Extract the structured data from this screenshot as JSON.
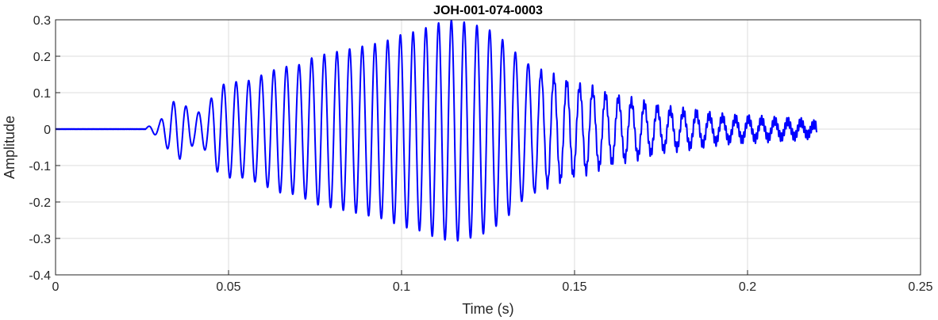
{
  "chart_data": {
    "type": "line",
    "title": "JOH-001-074-0003",
    "xlabel": "Time (s)",
    "ylabel": "Amplitude",
    "xlim": [
      0,
      0.25
    ],
    "ylim": [
      -0.4,
      0.3
    ],
    "grid": true,
    "xticks": [
      0,
      0.05,
      0.1,
      0.15,
      0.2,
      0.25
    ],
    "xtick_labels": [
      "0",
      "0.05",
      "0.1",
      "0.15",
      "0.2",
      "0.25"
    ],
    "yticks": [
      -0.4,
      -0.3,
      -0.2,
      -0.1,
      0,
      0.1,
      0.2,
      0.3
    ],
    "ytick_labels": [
      "-0.4",
      "-0.3",
      "-0.2",
      "-0.1",
      "0",
      "0.1",
      "0.2",
      "0.3"
    ],
    "series": [
      {
        "color": "#0000ff",
        "x_start": 0,
        "x_end": 0.22,
        "onset": 0.026,
        "envelope": [
          [
            0.026,
            0.004
          ],
          [
            0.03,
            0.02
          ],
          [
            0.034,
            0.075
          ],
          [
            0.036,
            0.08
          ],
          [
            0.04,
            0.04
          ],
          [
            0.044,
            0.06
          ],
          [
            0.046,
            0.11
          ],
          [
            0.05,
            0.13
          ],
          [
            0.055,
            0.13
          ],
          [
            0.06,
            0.15
          ],
          [
            0.065,
            0.17
          ],
          [
            0.07,
            0.175
          ],
          [
            0.075,
            0.2
          ],
          [
            0.08,
            0.21
          ],
          [
            0.085,
            0.22
          ],
          [
            0.09,
            0.23
          ],
          [
            0.095,
            0.24
          ],
          [
            0.1,
            0.26
          ],
          [
            0.105,
            0.27
          ],
          [
            0.11,
            0.29
          ],
          [
            0.115,
            0.3
          ],
          [
            0.12,
            0.29
          ],
          [
            0.125,
            0.275
          ],
          [
            0.13,
            0.24
          ],
          [
            0.135,
            0.19
          ],
          [
            0.14,
            0.16
          ],
          [
            0.145,
            0.14
          ],
          [
            0.15,
            0.12
          ],
          [
            0.155,
            0.11
          ],
          [
            0.16,
            0.09
          ],
          [
            0.165,
            0.08
          ],
          [
            0.17,
            0.07
          ],
          [
            0.175,
            0.055
          ],
          [
            0.18,
            0.05
          ],
          [
            0.185,
            0.045
          ],
          [
            0.19,
            0.035
          ],
          [
            0.195,
            0.03
          ],
          [
            0.2,
            0.028
          ],
          [
            0.205,
            0.025
          ],
          [
            0.21,
            0.022
          ],
          [
            0.215,
            0.02
          ],
          [
            0.22,
            0.012
          ]
        ],
        "period_start": 0.0036,
        "period_end": 0.0038
      }
    ]
  }
}
